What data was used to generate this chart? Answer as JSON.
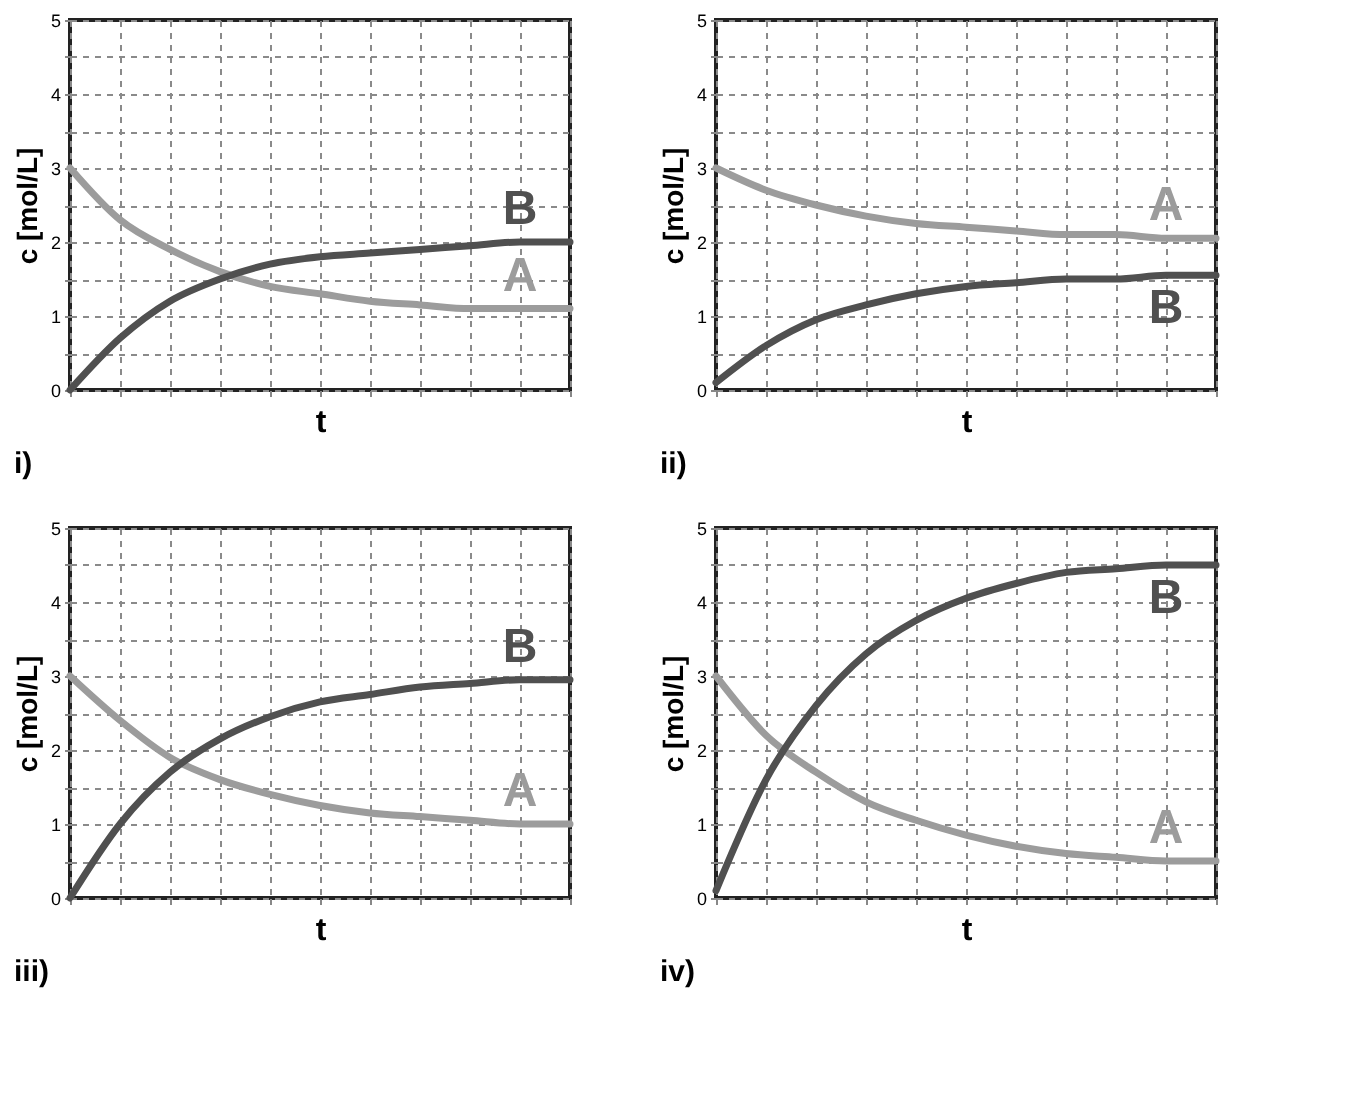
{
  "chart_data": [
    {
      "type": "line",
      "title": "i)",
      "xlabel": "t",
      "ylabel": "c [mol/L]",
      "categories": [
        null,
        null,
        null,
        null,
        null,
        null,
        null,
        null,
        null,
        null,
        null
      ],
      "series": [
        {
          "name": "A",
          "color": "#9c9c9c",
          "values": [
            3.0,
            2.3,
            1.9,
            1.6,
            1.4,
            1.3,
            1.2,
            1.15,
            1.1,
            1.1,
            1.1
          ]
        },
        {
          "name": "B",
          "color": "#505050",
          "values": [
            0,
            0.7,
            1.2,
            1.5,
            1.7,
            1.8,
            1.85,
            1.9,
            1.95,
            2.0,
            2.0
          ]
        }
      ],
      "ylim": [
        0,
        5
      ],
      "yticks": [
        0,
        {
          "value": 0.5,
          "label": null
        },
        1,
        {
          "value": 1.5,
          "label": null
        },
        2,
        {
          "value": 2.5,
          "label": null
        },
        3,
        {
          "value": 3.5,
          "label": null
        },
        4,
        {
          "value": 4.5,
          "label": null
        },
        5
      ],
      "grid": true,
      "tick_labels": "y"
    },
    {
      "type": "line",
      "title": "ii)",
      "xlabel": "t",
      "ylabel": "c [mol/L]",
      "categories": [
        null,
        null,
        null,
        null,
        null,
        null,
        null,
        null,
        null,
        null,
        null
      ],
      "series": [
        {
          "name": "A",
          "color": "#9c9c9c",
          "values": [
            3.0,
            2.7,
            2.5,
            2.35,
            2.25,
            2.2,
            2.15,
            2.1,
            2.1,
            2.05,
            2.05
          ]
        },
        {
          "name": "B",
          "color": "#505050",
          "values": [
            0.1,
            0.6,
            0.95,
            1.15,
            1.3,
            1.4,
            1.45,
            1.5,
            1.5,
            1.55,
            1.55
          ]
        }
      ],
      "ylim": [
        0,
        5
      ],
      "yticks": [
        0,
        {
          "value": 0.5,
          "label": null
        },
        1,
        {
          "value": 1.5,
          "label": null
        },
        2,
        {
          "value": 2.5,
          "label": null
        },
        3,
        {
          "value": 3.5,
          "label": null
        },
        4,
        {
          "value": 4.5,
          "label": null
        },
        5
      ],
      "grid": true,
      "tick_labels": "y"
    },
    {
      "type": "line",
      "title": "iii)",
      "xlabel": "t",
      "ylabel": "c [mol/L]",
      "categories": [
        null,
        null,
        null,
        null,
        null,
        null,
        null,
        null,
        null,
        null,
        null
      ],
      "series": [
        {
          "name": "A",
          "color": "#9c9c9c",
          "values": [
            3.0,
            2.4,
            1.9,
            1.6,
            1.4,
            1.25,
            1.15,
            1.1,
            1.05,
            1.0,
            1.0
          ]
        },
        {
          "name": "B",
          "color": "#505050",
          "values": [
            0,
            1.0,
            1.7,
            2.15,
            2.45,
            2.65,
            2.75,
            2.85,
            2.9,
            2.95,
            2.95
          ]
        }
      ],
      "ylim": [
        0,
        5
      ],
      "yticks": [
        0,
        {
          "value": 0.5,
          "label": null
        },
        1,
        {
          "value": 1.5,
          "label": null
        },
        2,
        {
          "value": 2.5,
          "label": null
        },
        3,
        {
          "value": 3.5,
          "label": null
        },
        4,
        {
          "value": 4.5,
          "label": null
        },
        5
      ],
      "grid": true,
      "tick_labels": "y"
    },
    {
      "type": "line",
      "title": "iv)",
      "xlabel": "t",
      "ylabel": "c [mol/L]",
      "categories": [
        null,
        null,
        null,
        null,
        null,
        null,
        null,
        null,
        null,
        null,
        null
      ],
      "series": [
        {
          "name": "A",
          "color": "#9c9c9c",
          "values": [
            3.0,
            2.2,
            1.7,
            1.3,
            1.05,
            0.85,
            0.7,
            0.6,
            0.55,
            0.5,
            0.5
          ]
        },
        {
          "name": "B",
          "color": "#505050",
          "values": [
            0.1,
            1.6,
            2.6,
            3.3,
            3.75,
            4.05,
            4.25,
            4.4,
            4.45,
            4.5,
            4.5
          ]
        }
      ],
      "ylim": [
        0,
        5
      ],
      "yticks": [
        0,
        {
          "value": 0.5,
          "label": null
        },
        1,
        {
          "value": 1.5,
          "label": null
        },
        2,
        {
          "value": 2.5,
          "label": null
        },
        3,
        {
          "value": 3.5,
          "label": null
        },
        4,
        {
          "value": 4.5,
          "label": null
        },
        5
      ],
      "grid": true,
      "tick_labels": "y"
    }
  ]
}
